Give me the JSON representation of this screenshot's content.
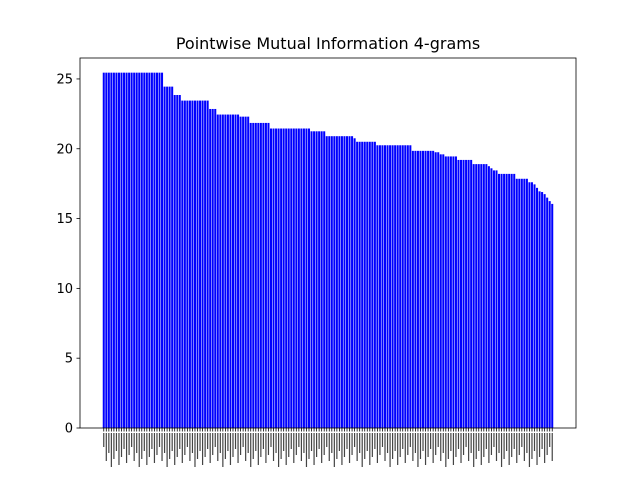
{
  "chart_data": {
    "type": "bar",
    "title": "Pointwise Mutual Information 4-grams",
    "xlabel": "",
    "ylabel": "",
    "ylim": [
      0,
      26.5
    ],
    "yticks": [
      0,
      5,
      10,
      15,
      20,
      25
    ],
    "bar_color": "#0000ff",
    "grid": false,
    "values": [
      25.45,
      25.45,
      25.45,
      25.45,
      25.45,
      25.45,
      25.45,
      25.45,
      25.45,
      25.45,
      25.45,
      25.45,
      25.45,
      25.45,
      25.45,
      25.45,
      25.45,
      25.45,
      25.45,
      25.45,
      25.45,
      25.45,
      25.45,
      25.45,
      24.45,
      24.45,
      24.45,
      24.45,
      23.85,
      23.85,
      23.85,
      23.45,
      23.45,
      23.45,
      23.45,
      23.45,
      23.45,
      23.45,
      23.45,
      23.45,
      23.45,
      23.45,
      22.85,
      22.85,
      22.85,
      22.45,
      22.45,
      22.45,
      22.45,
      22.45,
      22.45,
      22.45,
      22.45,
      22.45,
      22.3,
      22.3,
      22.3,
      22.3,
      21.85,
      21.85,
      21.85,
      21.85,
      21.85,
      21.85,
      21.85,
      21.85,
      21.45,
      21.45,
      21.45,
      21.45,
      21.45,
      21.45,
      21.45,
      21.45,
      21.45,
      21.45,
      21.45,
      21.45,
      21.45,
      21.45,
      21.45,
      21.45,
      21.25,
      21.25,
      21.25,
      21.25,
      21.25,
      21.25,
      20.9,
      20.9,
      20.9,
      20.9,
      20.9,
      20.9,
      20.9,
      20.9,
      20.9,
      20.9,
      20.9,
      20.75,
      20.5,
      20.5,
      20.5,
      20.5,
      20.5,
      20.5,
      20.5,
      20.5,
      20.25,
      20.25,
      20.25,
      20.25,
      20.25,
      20.25,
      20.25,
      20.25,
      20.25,
      20.25,
      20.25,
      20.25,
      20.25,
      20.25,
      19.85,
      19.85,
      19.85,
      19.85,
      19.85,
      19.85,
      19.85,
      19.85,
      19.85,
      19.75,
      19.75,
      19.6,
      19.6,
      19.45,
      19.45,
      19.45,
      19.45,
      19.45,
      19.2,
      19.2,
      19.2,
      19.2,
      19.2,
      19.2,
      18.9,
      18.9,
      18.9,
      18.9,
      18.9,
      18.9,
      18.75,
      18.6,
      18.45,
      18.45,
      18.2,
      18.2,
      18.2,
      18.2,
      18.2,
      18.2,
      18.2,
      17.85,
      17.85,
      17.85,
      17.85,
      17.85,
      17.6,
      17.6,
      17.45,
      17.2,
      16.95,
      16.9,
      16.75,
      16.5,
      16.25,
      16.05
    ]
  }
}
